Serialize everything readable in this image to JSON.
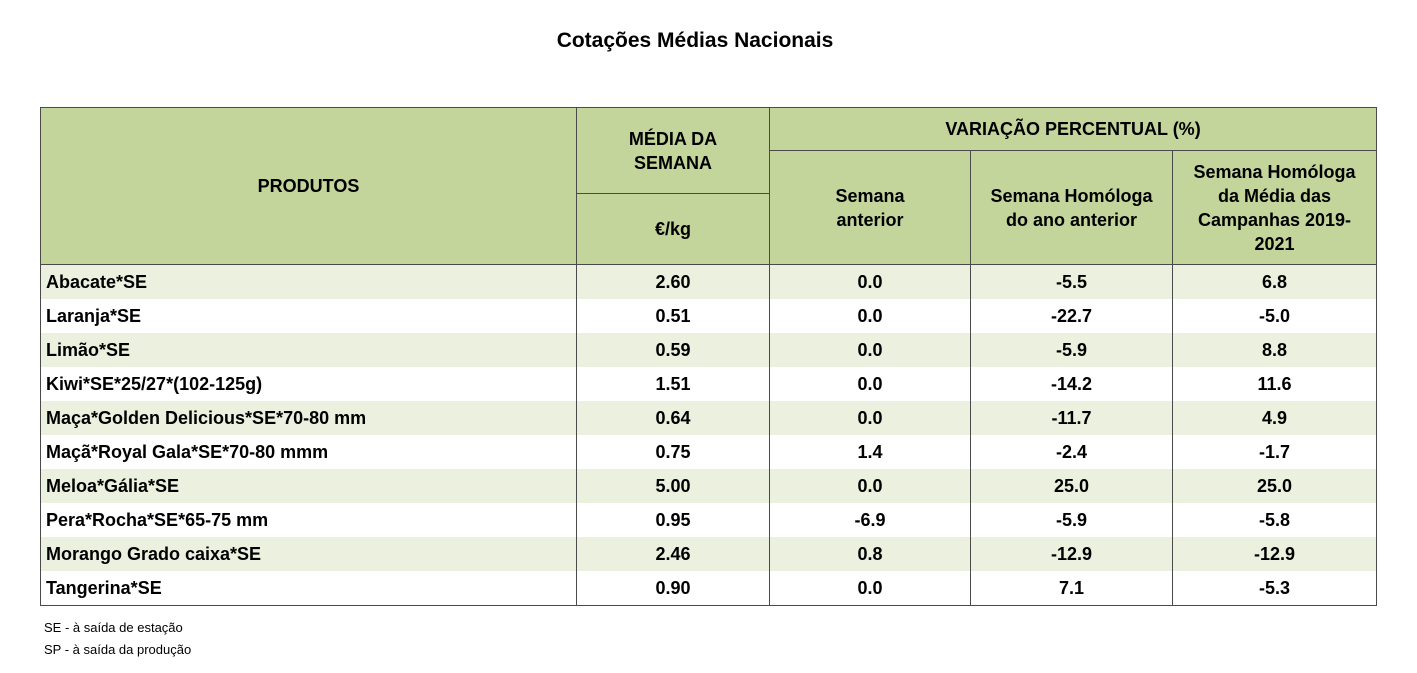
{
  "title": "Cotações Médias Nacionais",
  "table": {
    "headers": {
      "produtos": "PRODUTOS",
      "media": "MÉDIA DA SEMANA",
      "unit": "€/kg",
      "variacao": "VARIAÇÃO PERCENTUAL (%)",
      "semana_anterior": "Semana anterior",
      "homologa_ano": "Semana Homóloga do ano anterior",
      "homologa_media": "Semana Homóloga da Média das Campanhas 2019-2021"
    },
    "rows": [
      {
        "produto": "Abacate*SE",
        "media": "2.60",
        "anterior": "0.0",
        "homologa_ano": "-5.5",
        "homologa_media": "6.8"
      },
      {
        "produto": "Laranja*SE",
        "media": "0.51",
        "anterior": "0.0",
        "homologa_ano": "-22.7",
        "homologa_media": "-5.0"
      },
      {
        "produto": "Limão*SE",
        "media": "0.59",
        "anterior": "0.0",
        "homologa_ano": "-5.9",
        "homologa_media": "8.8"
      },
      {
        "produto": "Kiwi*SE*25/27*(102-125g)",
        "media": "1.51",
        "anterior": "0.0",
        "homologa_ano": "-14.2",
        "homologa_media": "11.6"
      },
      {
        "produto": "Maça*Golden Delicious*SE*70-80 mm",
        "media": "0.64",
        "anterior": "0.0",
        "homologa_ano": "-11.7",
        "homologa_media": "4.9"
      },
      {
        "produto": "Maçã*Royal Gala*SE*70-80 mmm",
        "media": "0.75",
        "anterior": "1.4",
        "homologa_ano": "-2.4",
        "homologa_media": "-1.7"
      },
      {
        "produto": "Meloa*Gália*SE",
        "media": "5.00",
        "anterior": "0.0",
        "homologa_ano": "25.0",
        "homologa_media": "25.0"
      },
      {
        "produto": "Pera*Rocha*SE*65-75 mm",
        "media": "0.95",
        "anterior": "-6.9",
        "homologa_ano": "-5.9",
        "homologa_media": "-5.8"
      },
      {
        "produto": "Morango Grado caixa*SE",
        "media": "2.46",
        "anterior": "0.8",
        "homologa_ano": "-12.9",
        "homologa_media": "-12.9"
      },
      {
        "produto": "Tangerina*SE",
        "media": "0.90",
        "anterior": "0.0",
        "homologa_ano": "7.1",
        "homologa_media": "-5.3"
      }
    ]
  },
  "notes": [
    "SE - à saída de estação",
    "SP - à saída da produção"
  ]
}
